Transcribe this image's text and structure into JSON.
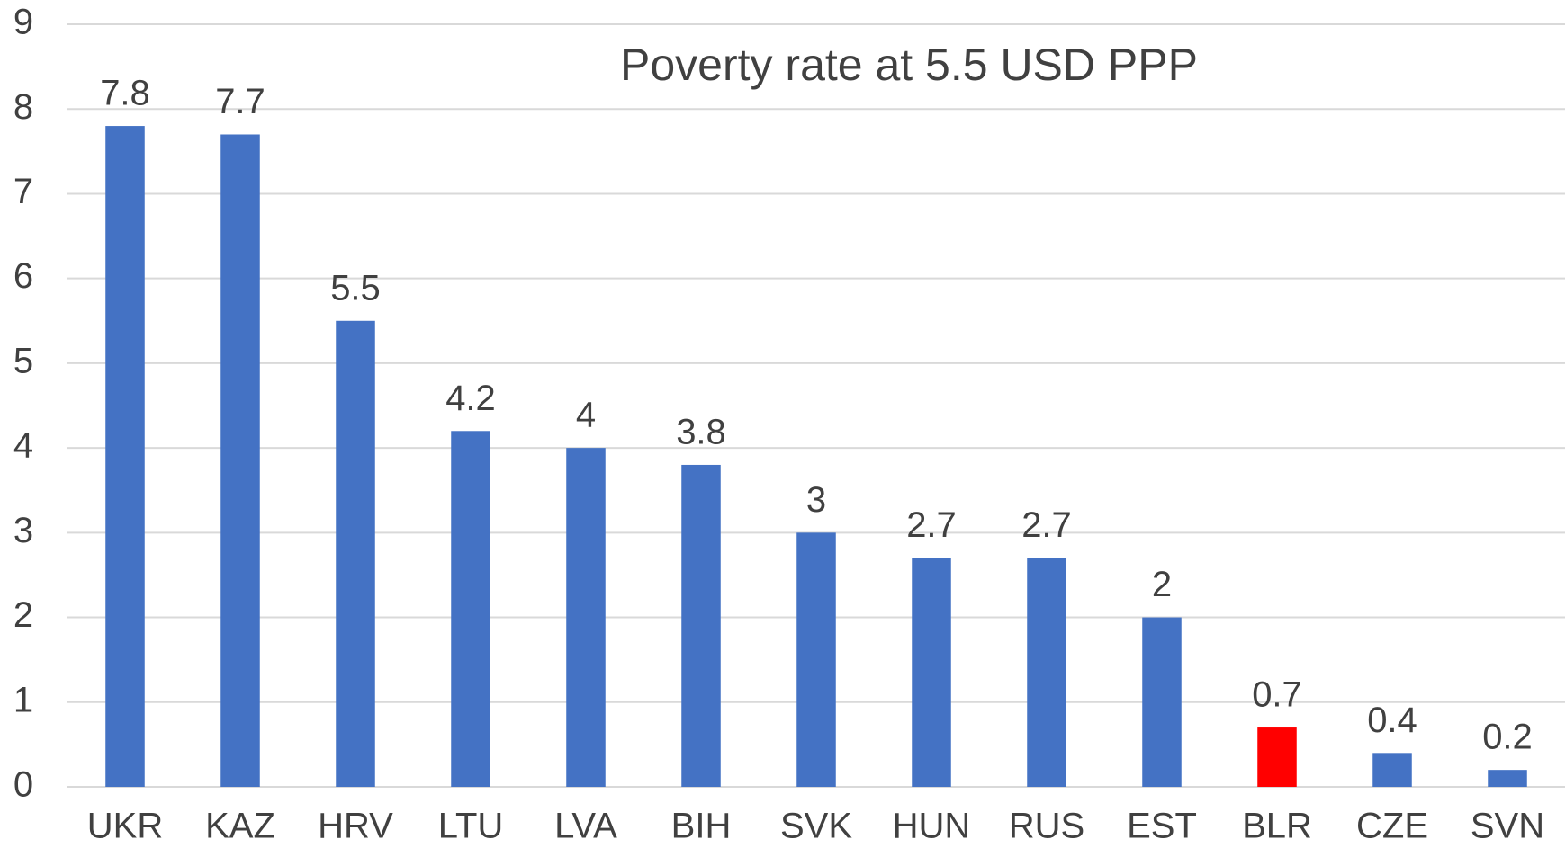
{
  "chart_data": {
    "type": "bar",
    "title": "Poverty rate at 5.5 USD PPP",
    "categories": [
      "UKR",
      "KAZ",
      "HRV",
      "LTU",
      "LVA",
      "BIH",
      "SVK",
      "HUN",
      "RUS",
      "EST",
      "BLR",
      "CZE",
      "SVN"
    ],
    "values": [
      7.8,
      7.7,
      5.5,
      4.2,
      4,
      3.8,
      3,
      2.7,
      2.7,
      2,
      0.7,
      0.4,
      0.2
    ],
    "colors": [
      "#4472c4",
      "#4472c4",
      "#4472c4",
      "#4472c4",
      "#4472c4",
      "#4472c4",
      "#4472c4",
      "#4472c4",
      "#4472c4",
      "#4472c4",
      "#ff0000",
      "#4472c4",
      "#4472c4"
    ],
    "ylim": [
      0,
      9
    ],
    "yticks": [
      0,
      1,
      2,
      3,
      4,
      5,
      6,
      7,
      8,
      9
    ],
    "grid": true
  }
}
